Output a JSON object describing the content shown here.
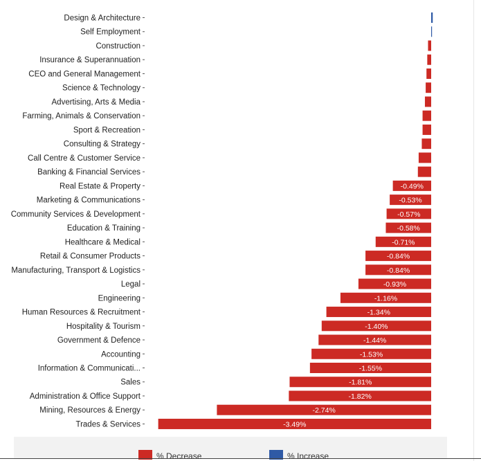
{
  "colors": {
    "decrease": "#cc2a24",
    "increase": "#2f5aa6",
    "label_text": "#222222",
    "value_text": "#ffffff",
    "legend_bg": "#f2f2f2"
  },
  "legend": {
    "decrease_label": "% Decrease",
    "increase_label": "% Increase"
  },
  "chart_data": {
    "type": "bar",
    "orientation": "horizontal",
    "categories": [
      "Design & Architecture",
      "Self Employment",
      "Construction",
      "Insurance & Superannuation",
      "CEO and General Management",
      "Science & Technology",
      "Advertising, Arts & Media",
      "Farming, Animals & Conservation",
      "Sport & Recreation",
      "Consulting & Strategy",
      "Call Centre & Customer Service",
      "Banking & Financial Services",
      "Real Estate & Property",
      "Marketing & Communications",
      "Community Services & Development",
      "Education & Training",
      "Healthcare & Medical",
      "Retail & Consumer Products",
      "Manufacturing, Transport & Logistics",
      "Legal",
      "Engineering",
      "Human Resources & Recruitment",
      "Hospitality & Tourism",
      "Government & Defence",
      "Accounting",
      "Information & Communicati...",
      "Sales",
      "Administration & Office Support",
      "Mining, Resources & Energy",
      "Trades & Services"
    ],
    "values": [
      0.02,
      0.005,
      -0.04,
      -0.05,
      -0.06,
      -0.07,
      -0.08,
      -0.11,
      -0.11,
      -0.12,
      -0.16,
      -0.17,
      -0.49,
      -0.53,
      -0.57,
      -0.58,
      -0.71,
      -0.84,
      -0.84,
      -0.93,
      -1.16,
      -1.34,
      -1.4,
      -1.44,
      -1.53,
      -1.55,
      -1.81,
      -1.82,
      -2.74,
      -3.49
    ],
    "value_labels": [
      "",
      "",
      "",
      "",
      "",
      "",
      "",
      "",
      "",
      "",
      "",
      "",
      "-0.49%",
      "-0.53%",
      "-0.57%",
      "-0.58%",
      "-0.71%",
      "-0.84%",
      "-0.84%",
      "-0.93%",
      "-1.16%",
      "-1.34%",
      "-1.40%",
      "-1.44%",
      "-1.53%",
      "-1.55%",
      "-1.81%",
      "-1.82%",
      "-2.74%",
      "-3.49%"
    ],
    "xlim": [
      -3.49,
      0.02
    ],
    "grid": false,
    "legend_position": "bottom",
    "series": [
      {
        "name": "% Decrease",
        "color": "#cc2a24"
      },
      {
        "name": "% Increase",
        "color": "#2f5aa6"
      }
    ]
  }
}
